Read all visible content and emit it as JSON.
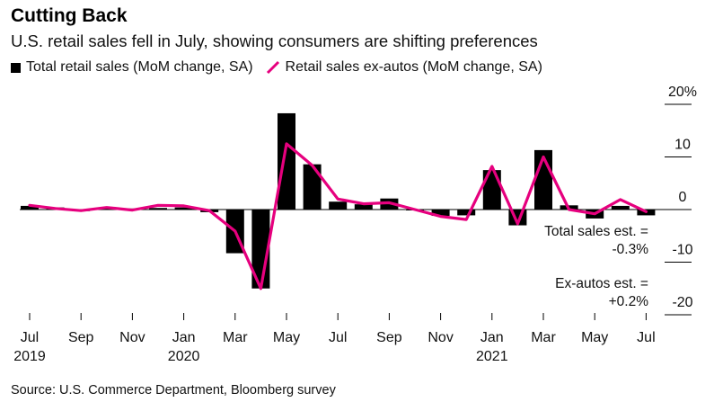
{
  "chart_data": {
    "type": "bar+line",
    "title": "Cutting Back",
    "subtitle": "U.S. retail sales fell in July, showing consumers are shifting preferences",
    "source": "Source: U.S. Commerce Department, Bloomberg survey",
    "legend": [
      {
        "name": "Total retail sales (MoM change, SA)",
        "marker": "bar",
        "color": "#000000"
      },
      {
        "name": "Retail sales ex-autos (MoM change, SA)",
        "marker": "line",
        "color": "#e6007e"
      }
    ],
    "categories": [
      "Jul 2019",
      "Aug 2019",
      "Sep 2019",
      "Oct 2019",
      "Nov 2019",
      "Dec 2019",
      "Jan 2020",
      "Feb 2020",
      "Mar 2020",
      "Apr 2020",
      "May 2020",
      "Jun 2020",
      "Jul 2020",
      "Aug 2020",
      "Sep 2020",
      "Oct 2020",
      "Nov 2020",
      "Dec 2020",
      "Jan 2021",
      "Feb 2021",
      "Mar 2021",
      "Apr 2021",
      "May 2021",
      "Jun 2021",
      "Jul 2021"
    ],
    "series": [
      {
        "name": "Total retail sales (MoM change, SA)",
        "kind": "bar",
        "color": "#000000",
        "values": [
          0.7,
          0.4,
          -0.3,
          0.4,
          0.2,
          0.3,
          0.4,
          -0.5,
          -8.3,
          -15.0,
          18.3,
          8.6,
          1.5,
          1.0,
          2.1,
          0.0,
          -1.2,
          -1.1,
          7.5,
          -3.0,
          11.3,
          0.8,
          -1.7,
          0.7,
          -1.1
        ]
      },
      {
        "name": "Retail sales ex-autos (MoM change, SA)",
        "kind": "line",
        "color": "#e6007e",
        "values": [
          0.8,
          0.2,
          -0.2,
          0.4,
          -0.1,
          0.8,
          0.7,
          -0.2,
          -4.1,
          -15.0,
          12.5,
          8.4,
          2.0,
          1.1,
          1.3,
          0.0,
          -1.3,
          -1.9,
          8.2,
          -2.7,
          10.0,
          0.0,
          -0.8,
          1.9,
          -0.4
        ]
      }
    ],
    "y_ticks": [
      {
        "value": 20,
        "label": "20%"
      },
      {
        "value": 10,
        "label": "10"
      },
      {
        "value": 0,
        "label": "0"
      },
      {
        "value": -10,
        "label": "-10"
      },
      {
        "value": -20,
        "label": "-20"
      }
    ],
    "ylim": [
      -20,
      20
    ],
    "x_ticks": [
      {
        "index": 0,
        "month": "Jul",
        "year": "2019"
      },
      {
        "index": 2,
        "month": "Sep",
        "year": ""
      },
      {
        "index": 4,
        "month": "Nov",
        "year": ""
      },
      {
        "index": 6,
        "month": "Jan",
        "year": "2020"
      },
      {
        "index": 8,
        "month": "Mar",
        "year": ""
      },
      {
        "index": 10,
        "month": "May",
        "year": ""
      },
      {
        "index": 12,
        "month": "Jul",
        "year": ""
      },
      {
        "index": 14,
        "month": "Sep",
        "year": ""
      },
      {
        "index": 16,
        "month": "Nov",
        "year": ""
      },
      {
        "index": 18,
        "month": "Jan",
        "year": "2021"
      },
      {
        "index": 20,
        "month": "Mar",
        "year": ""
      },
      {
        "index": 22,
        "month": "May",
        "year": ""
      },
      {
        "index": 24,
        "month": "Jul",
        "year": ""
      }
    ],
    "annotations": [
      {
        "line1": "Total sales est. =",
        "line2": "-0.3%"
      },
      {
        "line1": "Ex-autos est. =",
        "line2": "+0.2%"
      }
    ]
  }
}
